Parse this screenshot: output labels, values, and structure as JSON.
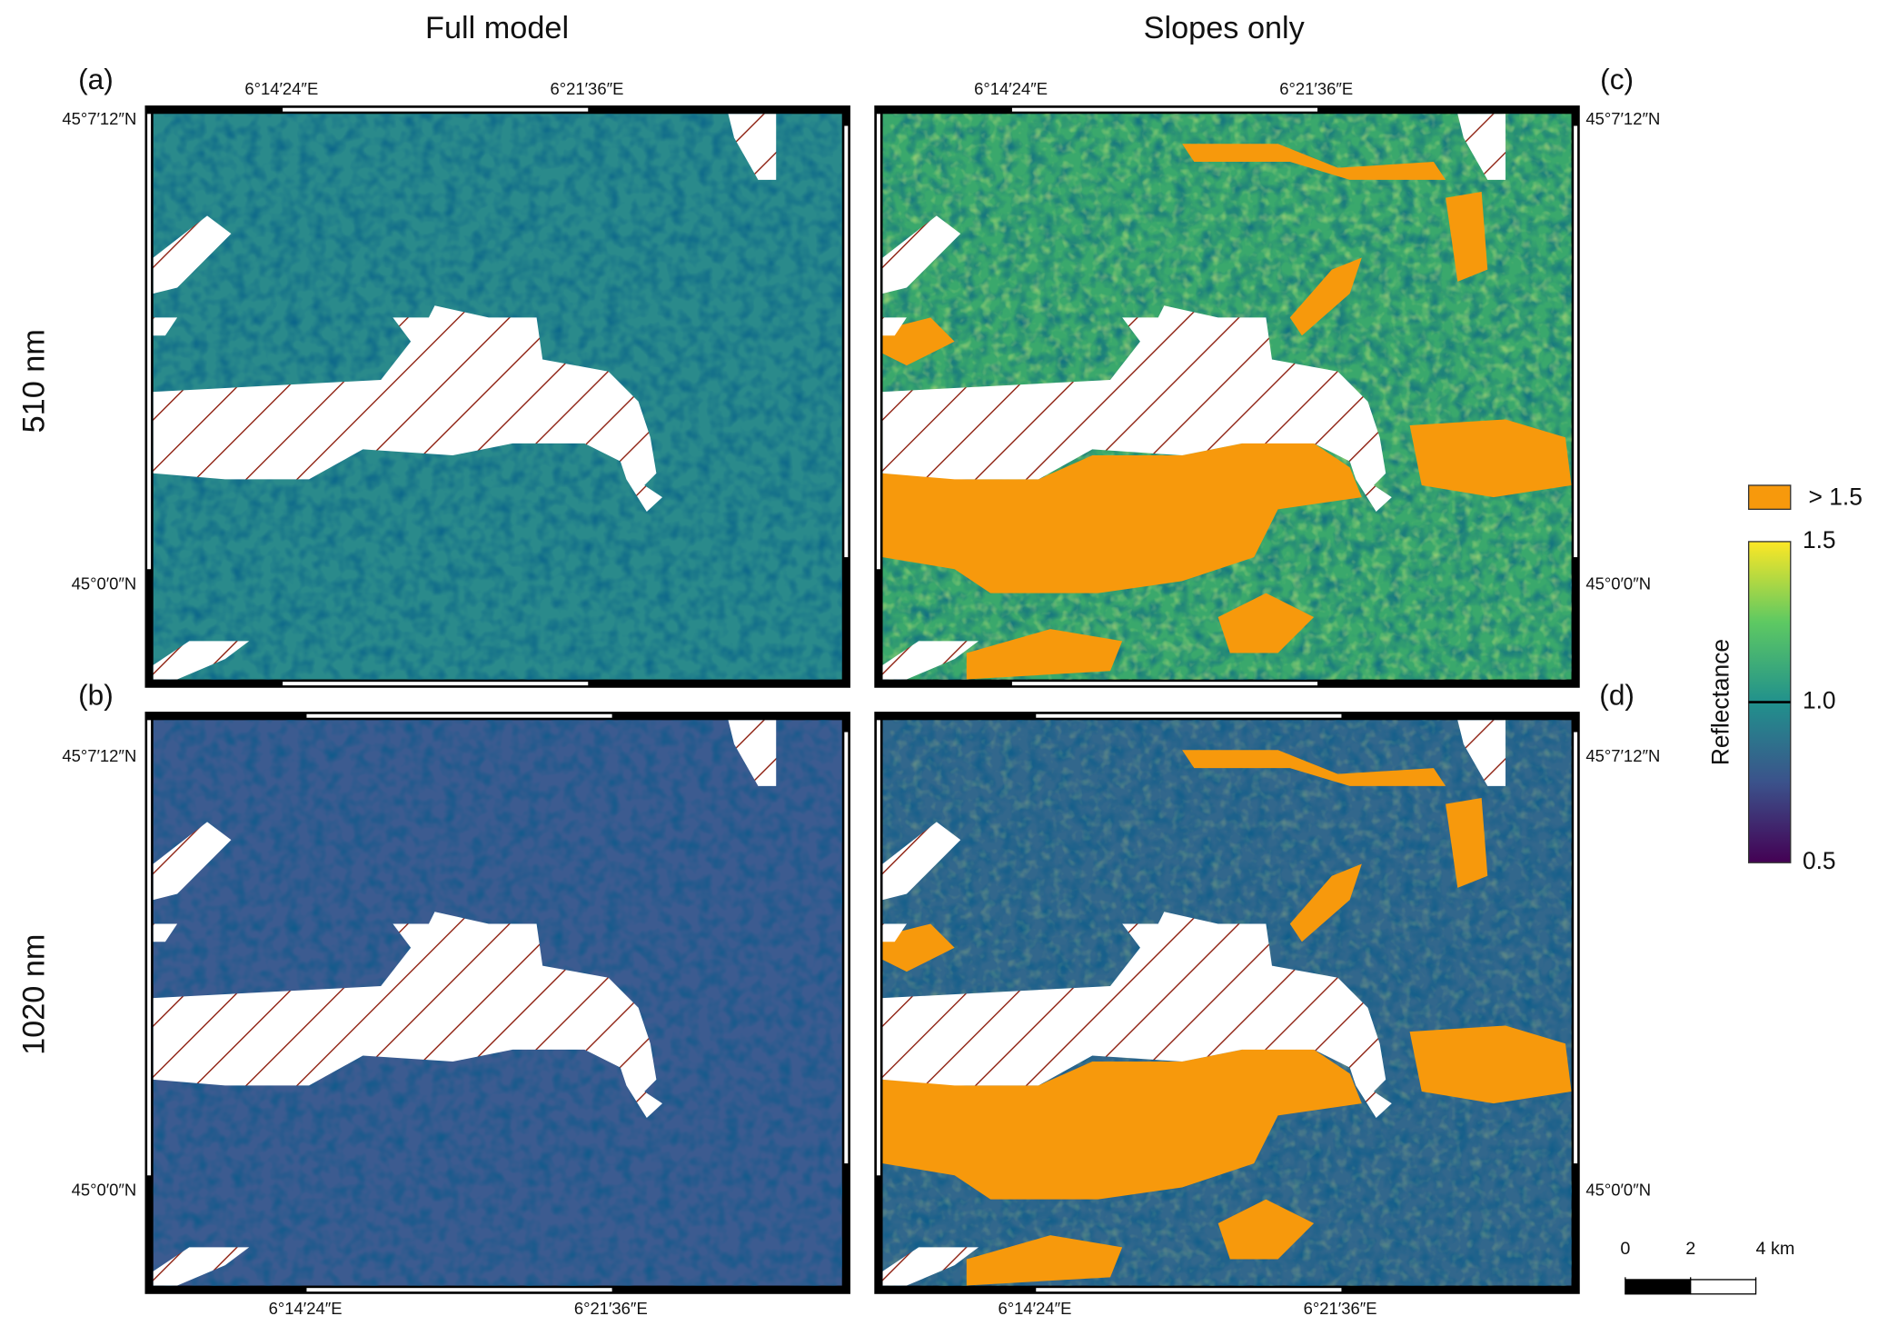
{
  "titles": {
    "columns": [
      "Full model",
      "Slopes only"
    ],
    "rows": [
      "510 nm",
      "1020 nm"
    ]
  },
  "panels": [
    {
      "label": "(a)"
    },
    {
      "label": "(b)"
    },
    {
      "label": "(c)"
    },
    {
      "label": "(d)"
    }
  ],
  "axes": {
    "lon_ticks": [
      "6°14′24″E",
      "6°21′36″E"
    ],
    "lat_ticks": [
      "45°7′12″N",
      "45°0′0″N"
    ]
  },
  "colorbar": {
    "label": "Reflectance",
    "overflow_label": "> 1.5",
    "overflow_color": "#f7990c",
    "lim": [
      0.5,
      1.5
    ],
    "ticks": [
      0.5,
      {
        "value": 1,
        "label": "1.0"
      },
      1.5
    ]
  },
  "scale_bar": {
    "ticks": [
      0,
      2,
      {
        "value": 4,
        "label": "4 km"
      }
    ]
  }
}
